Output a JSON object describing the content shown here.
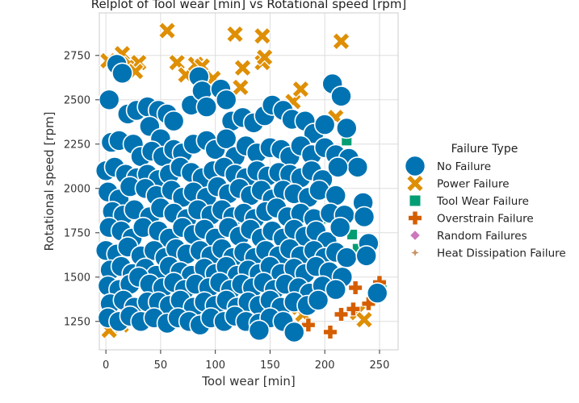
{
  "chart_data": {
    "type": "scatter",
    "title": "Relplot of Tool wear [min] vs Rotational speed [rpm]",
    "xlabel": "Tool wear [min]",
    "ylabel": "Rotational speed [rpm]",
    "xlim": [
      -6,
      267
    ],
    "ylim": [
      1090,
      2990
    ],
    "xticks": [
      "0",
      "50",
      "100",
      "150",
      "200",
      "250"
    ],
    "xtick_values": [
      0,
      50,
      100,
      150,
      200,
      250
    ],
    "yticks": [
      "1250",
      "1500",
      "1750",
      "2000",
      "2250",
      "2500",
      "2750"
    ],
    "ytick_values": [
      1250,
      1500,
      1750,
      2000,
      2250,
      2500,
      2750
    ],
    "grid": true,
    "legend": {
      "title": "Failure Type",
      "placement": "right",
      "entries": [
        {
          "label": "No Failure",
          "marker": "circle",
          "color": "#0173b2"
        },
        {
          "label": "Power Failure",
          "marker": "x",
          "color": "#de8f05"
        },
        {
          "label": "Tool Wear Failure",
          "marker": "square",
          "color": "#029e73"
        },
        {
          "label": "Overstrain Failure",
          "marker": "plus",
          "color": "#d55e00"
        },
        {
          "label": "Random Failures",
          "marker": "diamond",
          "color": "#cc78bc"
        },
        {
          "label": "Heat Dissipation Failure",
          "marker": "star",
          "color": "#ca9161"
        }
      ]
    },
    "series": [
      {
        "name": "Power Failure",
        "points": [
          [
            2,
            2720
          ],
          [
            15,
            2760
          ],
          [
            22,
            2700
          ],
          [
            30,
            2710
          ],
          [
            16,
            2640
          ],
          [
            27,
            2660
          ],
          [
            56,
            2890
          ],
          [
            65,
            2710
          ],
          [
            73,
            2640
          ],
          [
            82,
            2700
          ],
          [
            88,
            2690
          ],
          [
            98,
            2620
          ],
          [
            118,
            2870
          ],
          [
            125,
            2680
          ],
          [
            123,
            2570
          ],
          [
            143,
            2860
          ],
          [
            143,
            2710
          ],
          [
            145,
            2740
          ],
          [
            171,
            2490
          ],
          [
            178,
            2560
          ],
          [
            215,
            2830
          ],
          [
            210,
            2400
          ],
          [
            3,
            1200
          ],
          [
            14,
            1230
          ],
          [
            180,
            1290
          ],
          [
            230,
            1300
          ],
          [
            236,
            1260
          ],
          [
            168,
            1330
          ]
        ]
      },
      {
        "name": "Tool Wear Failure",
        "points": [
          [
            220,
            2270
          ],
          [
            232,
            2100
          ],
          [
            208,
            1920
          ],
          [
            200,
            1830
          ],
          [
            225,
            1740
          ],
          [
            230,
            1660
          ],
          [
            252,
            1460
          ]
        ]
      },
      {
        "name": "Overstrain Failure",
        "points": [
          [
            185,
            1230
          ],
          [
            205,
            1190
          ],
          [
            215,
            1290
          ],
          [
            228,
            1440
          ],
          [
            240,
            1350
          ],
          [
            226,
            1320
          ],
          [
            250,
            1470
          ]
        ]
      },
      {
        "name": "No Failure",
        "points": [
          [
            3,
            2500
          ],
          [
            10,
            2700
          ],
          [
            15,
            2650
          ],
          [
            20,
            2420
          ],
          [
            28,
            2440
          ],
          [
            38,
            2460
          ],
          [
            48,
            2440
          ],
          [
            56,
            2420
          ],
          [
            40,
            2350
          ],
          [
            50,
            2280
          ],
          [
            62,
            2380
          ],
          [
            78,
            2470
          ],
          [
            85,
            2630
          ],
          [
            88,
            2550
          ],
          [
            92,
            2460
          ],
          [
            105,
            2560
          ],
          [
            110,
            2500
          ],
          [
            115,
            2380
          ],
          [
            125,
            2400
          ],
          [
            135,
            2370
          ],
          [
            145,
            2410
          ],
          [
            152,
            2470
          ],
          [
            162,
            2440
          ],
          [
            170,
            2390
          ],
          [
            182,
            2380
          ],
          [
            190,
            2310
          ],
          [
            200,
            2360
          ],
          [
            207,
            2590
          ],
          [
            215,
            2520
          ],
          [
            220,
            2340
          ],
          [
            5,
            2260
          ],
          [
            12,
            2270
          ],
          [
            25,
            2250
          ],
          [
            32,
            2180
          ],
          [
            42,
            2210
          ],
          [
            52,
            2180
          ],
          [
            62,
            2220
          ],
          [
            70,
            2200
          ],
          [
            80,
            2250
          ],
          [
            92,
            2270
          ],
          [
            100,
            2220
          ],
          [
            110,
            2280
          ],
          [
            118,
            2180
          ],
          [
            128,
            2240
          ],
          [
            138,
            2200
          ],
          [
            150,
            2230
          ],
          [
            160,
            2220
          ],
          [
            168,
            2180
          ],
          [
            178,
            2240
          ],
          [
            188,
            2190
          ],
          [
            200,
            2230
          ],
          [
            210,
            2190
          ],
          [
            222,
            2170
          ],
          [
            230,
            2120
          ],
          [
            0,
            2100
          ],
          [
            8,
            2120
          ],
          [
            18,
            2080
          ],
          [
            28,
            2060
          ],
          [
            38,
            2080
          ],
          [
            48,
            2050
          ],
          [
            58,
            2080
          ],
          [
            68,
            2120
          ],
          [
            78,
            2090
          ],
          [
            88,
            2060
          ],
          [
            98,
            2100
          ],
          [
            108,
            2120
          ],
          [
            118,
            2080
          ],
          [
            128,
            2060
          ],
          [
            138,
            2100
          ],
          [
            148,
            2070
          ],
          [
            158,
            2090
          ],
          [
            168,
            2080
          ],
          [
            178,
            2060
          ],
          [
            188,
            2100
          ],
          [
            198,
            2050
          ],
          [
            212,
            2120
          ],
          [
            2,
            1980
          ],
          [
            12,
            1940
          ],
          [
            22,
            2010
          ],
          [
            36,
            2000
          ],
          [
            46,
            1960
          ],
          [
            60,
            1990
          ],
          [
            70,
            1950
          ],
          [
            80,
            1980
          ],
          [
            92,
            1950
          ],
          [
            102,
            2010
          ],
          [
            112,
            1970
          ],
          [
            122,
            2000
          ],
          [
            132,
            1960
          ],
          [
            142,
            1990
          ],
          [
            152,
            1940
          ],
          [
            162,
            1990
          ],
          [
            172,
            1970
          ],
          [
            185,
            1950
          ],
          [
            195,
            1990
          ],
          [
            210,
            1960
          ],
          [
            235,
            1920
          ],
          [
            6,
            1870
          ],
          [
            16,
            1850
          ],
          [
            26,
            1880
          ],
          [
            40,
            1840
          ],
          [
            50,
            1890
          ],
          [
            62,
            1860
          ],
          [
            74,
            1830
          ],
          [
            84,
            1880
          ],
          [
            96,
            1850
          ],
          [
            106,
            1880
          ],
          [
            116,
            1840
          ],
          [
            126,
            1860
          ],
          [
            136,
            1830
          ],
          [
            146,
            1870
          ],
          [
            156,
            1890
          ],
          [
            166,
            1840
          ],
          [
            178,
            1860
          ],
          [
            190,
            1830
          ],
          [
            205,
            1860
          ],
          [
            218,
            1850
          ],
          [
            236,
            1840
          ],
          [
            3,
            1780
          ],
          [
            14,
            1760
          ],
          [
            24,
            1720
          ],
          [
            34,
            1780
          ],
          [
            48,
            1760
          ],
          [
            58,
            1720
          ],
          [
            70,
            1780
          ],
          [
            80,
            1740
          ],
          [
            90,
            1770
          ],
          [
            100,
            1720
          ],
          [
            112,
            1780
          ],
          [
            122,
            1730
          ],
          [
            132,
            1770
          ],
          [
            142,
            1720
          ],
          [
            152,
            1760
          ],
          [
            162,
            1720
          ],
          [
            172,
            1770
          ],
          [
            182,
            1730
          ],
          [
            192,
            1760
          ],
          [
            202,
            1700
          ],
          [
            214,
            1780
          ],
          [
            240,
            1690
          ],
          [
            0,
            1650
          ],
          [
            10,
            1630
          ],
          [
            20,
            1670
          ],
          [
            32,
            1620
          ],
          [
            44,
            1650
          ],
          [
            54,
            1610
          ],
          [
            64,
            1660
          ],
          [
            74,
            1630
          ],
          [
            86,
            1650
          ],
          [
            96,
            1620
          ],
          [
            106,
            1660
          ],
          [
            116,
            1610
          ],
          [
            126,
            1640
          ],
          [
            136,
            1610
          ],
          [
            146,
            1650
          ],
          [
            158,
            1620
          ],
          [
            168,
            1660
          ],
          [
            178,
            1620
          ],
          [
            190,
            1650
          ],
          [
            200,
            1610
          ],
          [
            210,
            1640
          ],
          [
            220,
            1610
          ],
          [
            238,
            1620
          ],
          [
            4,
            1540
          ],
          [
            14,
            1560
          ],
          [
            24,
            1520
          ],
          [
            36,
            1550
          ],
          [
            46,
            1510
          ],
          [
            58,
            1560
          ],
          [
            68,
            1530
          ],
          [
            78,
            1510
          ],
          [
            90,
            1550
          ],
          [
            100,
            1520
          ],
          [
            110,
            1560
          ],
          [
            120,
            1510
          ],
          [
            130,
            1540
          ],
          [
            140,
            1520
          ],
          [
            150,
            1560
          ],
          [
            160,
            1520
          ],
          [
            172,
            1550
          ],
          [
            182,
            1520
          ],
          [
            192,
            1560
          ],
          [
            204,
            1530
          ],
          [
            216,
            1500
          ],
          [
            2,
            1450
          ],
          [
            12,
            1430
          ],
          [
            22,
            1460
          ],
          [
            30,
            1500
          ],
          [
            40,
            1460
          ],
          [
            52,
            1440
          ],
          [
            62,
            1470
          ],
          [
            72,
            1430
          ],
          [
            82,
            1460
          ],
          [
            94,
            1440
          ],
          [
            104,
            1470
          ],
          [
            114,
            1430
          ],
          [
            124,
            1460
          ],
          [
            134,
            1440
          ],
          [
            144,
            1470
          ],
          [
            154,
            1430
          ],
          [
            164,
            1460
          ],
          [
            176,
            1440
          ],
          [
            186,
            1410
          ],
          [
            198,
            1450
          ],
          [
            210,
            1430
          ],
          [
            248,
            1410
          ],
          [
            4,
            1350
          ],
          [
            16,
            1370
          ],
          [
            26,
            1330
          ],
          [
            38,
            1360
          ],
          [
            48,
            1360
          ],
          [
            58,
            1340
          ],
          [
            68,
            1370
          ],
          [
            80,
            1330
          ],
          [
            90,
            1360
          ],
          [
            100,
            1340
          ],
          [
            110,
            1370
          ],
          [
            120,
            1330
          ],
          [
            130,
            1360
          ],
          [
            140,
            1340
          ],
          [
            150,
            1370
          ],
          [
            160,
            1330
          ],
          [
            172,
            1360
          ],
          [
            184,
            1340
          ],
          [
            194,
            1370
          ],
          [
            2,
            1270
          ],
          [
            12,
            1250
          ],
          [
            22,
            1280
          ],
          [
            32,
            1250
          ],
          [
            44,
            1270
          ],
          [
            56,
            1240
          ],
          [
            66,
            1270
          ],
          [
            76,
            1250
          ],
          [
            86,
            1230
          ],
          [
            96,
            1270
          ],
          [
            108,
            1250
          ],
          [
            118,
            1280
          ],
          [
            128,
            1250
          ],
          [
            140,
            1240
          ],
          [
            150,
            1270
          ],
          [
            162,
            1250
          ],
          [
            172,
            1190
          ],
          [
            140,
            1200
          ]
        ]
      }
    ]
  }
}
